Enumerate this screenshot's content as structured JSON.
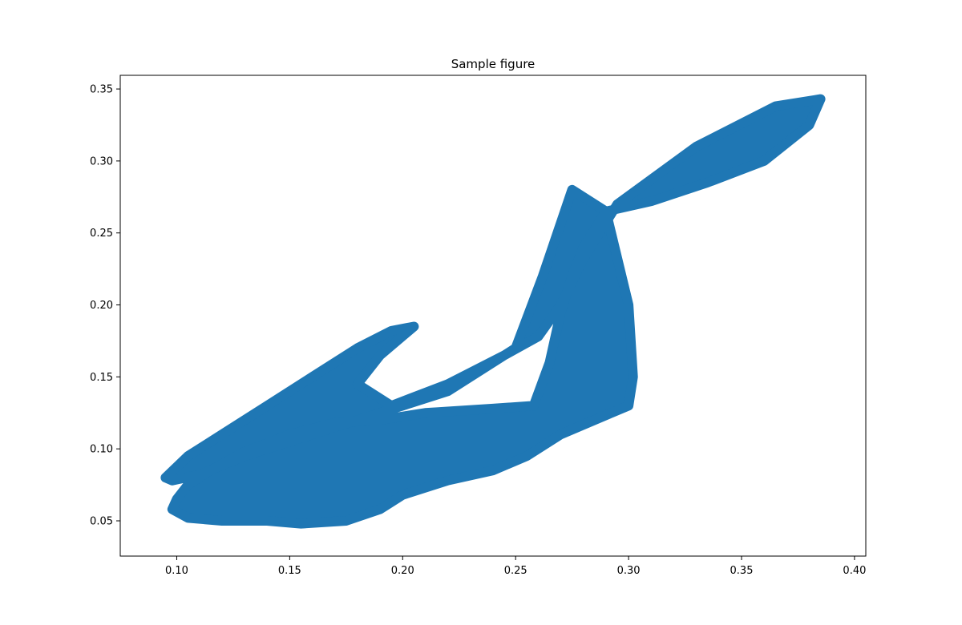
{
  "chart_data": {
    "type": "line",
    "title": "Sample figure",
    "xlabel": "",
    "ylabel": "",
    "xlim": [
      0.075,
      0.405
    ],
    "ylim": [
      0.0255,
      0.3595
    ],
    "xticks": [
      0.1,
      0.15,
      0.2,
      0.25,
      0.3,
      0.35,
      0.4
    ],
    "xtick_labels": [
      "0.10",
      "0.15",
      "0.20",
      "0.25",
      "0.30",
      "0.35",
      "0.40"
    ],
    "yticks": [
      0.05,
      0.1,
      0.15,
      0.2,
      0.25,
      0.3,
      0.35
    ],
    "ytick_labels": [
      "0.05",
      "0.10",
      "0.15",
      "0.20",
      "0.25",
      "0.30",
      "0.35"
    ],
    "grid": false,
    "legend": "none",
    "series": [
      {
        "color": "#1f77b4",
        "x": [
          0.095,
          0.105,
          0.12,
          0.14,
          0.16,
          0.18,
          0.195,
          0.205,
          0.19,
          0.18,
          0.195,
          0.22,
          0.245,
          0.26,
          0.27,
          0.28,
          0.295,
          0.33,
          0.365,
          0.385,
          0.38,
          0.36,
          0.335,
          0.31,
          0.29,
          0.28,
          0.275,
          0.27,
          0.265,
          0.258,
          0.24,
          0.21,
          0.19,
          0.17,
          0.15,
          0.13,
          0.115,
          0.105,
          0.1,
          0.098,
          0.105,
          0.12,
          0.14,
          0.155,
          0.175,
          0.19,
          0.2,
          0.22,
          0.24,
          0.255,
          0.27,
          0.285,
          0.3,
          0.302,
          0.3,
          0.29,
          0.275,
          0.262,
          0.25,
          0.22,
          0.19,
          0.16,
          0.13,
          0.11,
          0.098,
          0.095
        ],
        "y": [
          0.08,
          0.095,
          0.11,
          0.13,
          0.15,
          0.17,
          0.182,
          0.185,
          0.165,
          0.145,
          0.13,
          0.145,
          0.165,
          0.178,
          0.2,
          0.232,
          0.27,
          0.31,
          0.338,
          0.343,
          0.325,
          0.3,
          0.285,
          0.272,
          0.265,
          0.24,
          0.22,
          0.195,
          0.16,
          0.13,
          0.128,
          0.125,
          0.12,
          0.118,
          0.11,
          0.098,
          0.085,
          0.075,
          0.065,
          0.058,
          0.052,
          0.05,
          0.05,
          0.048,
          0.05,
          0.058,
          0.068,
          0.078,
          0.085,
          0.095,
          0.11,
          0.12,
          0.13,
          0.15,
          0.2,
          0.265,
          0.28,
          0.22,
          0.17,
          0.14,
          0.125,
          0.11,
          0.095,
          0.082,
          0.078,
          0.08
        ]
      }
    ]
  }
}
